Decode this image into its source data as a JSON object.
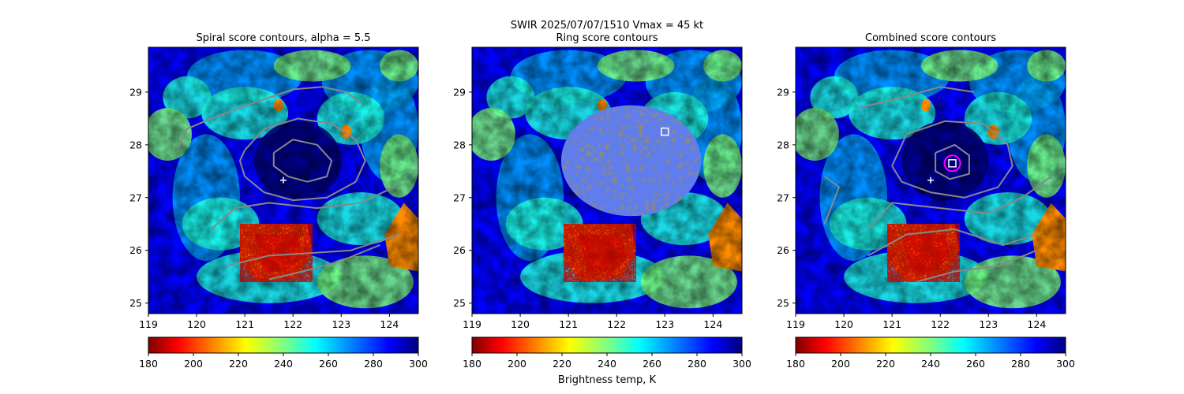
{
  "suptitle": {
    "line1": "SWIR  2025/07/07/1510    Vmax = 45 kt"
  },
  "colorbar_label": "Brightness temp, K",
  "colors": {
    "cold_deep": "#00007f",
    "cold": "#0000ff",
    "mid_cold": "#00a8ff",
    "cyan": "#1fffe0",
    "green": "#7dff7a",
    "yellow": "#ffe600",
    "orange": "#ff8c00",
    "warm": "#ff1e00",
    "warm_deep": "#800000",
    "contour": "#888888",
    "center_marker": "#ffffff",
    "ring_marker": "#ff00ff"
  },
  "chart_data": [
    {
      "type": "heatmap",
      "title": "Spiral score contours, alpha =  5.5",
      "xlim": [
        119,
        124.6
      ],
      "ylim": [
        24.8,
        29.85
      ],
      "xticks": [
        "119",
        "120",
        "121",
        "122",
        "123",
        "124"
      ],
      "yticks": [
        "25",
        "26",
        "27",
        "28",
        "29"
      ],
      "colorbar": {
        "label": "",
        "range": [
          180,
          300
        ],
        "ticks": [
          "180",
          "200",
          "220",
          "240",
          "260",
          "280",
          "300"
        ]
      },
      "markers": [
        {
          "kind": "plus",
          "lon": 121.8,
          "lat": 27.33
        }
      ],
      "contours": [
        [
          [
            119.6,
            27.9
          ],
          [
            119.8,
            28.3
          ],
          [
            120.3,
            28.5
          ],
          [
            121.2,
            28.8
          ],
          [
            122.0,
            29.05
          ],
          [
            122.6,
            29.1
          ],
          [
            123.1,
            29.0
          ],
          [
            123.4,
            28.8
          ]
        ],
        [
          [
            121.0,
            27.9
          ],
          [
            121.4,
            28.3
          ],
          [
            122.1,
            28.5
          ],
          [
            122.8,
            28.4
          ],
          [
            123.3,
            28.1
          ],
          [
            123.5,
            27.7
          ],
          [
            123.3,
            27.3
          ],
          [
            122.7,
            27.0
          ],
          [
            122.0,
            26.95
          ],
          [
            121.4,
            27.1
          ],
          [
            121.0,
            27.4
          ],
          [
            120.9,
            27.7
          ],
          [
            121.0,
            27.9
          ]
        ],
        [
          [
            121.6,
            27.85
          ],
          [
            122.0,
            28.1
          ],
          [
            122.5,
            28.0
          ],
          [
            122.8,
            27.7
          ],
          [
            122.7,
            27.4
          ],
          [
            122.3,
            27.3
          ],
          [
            121.9,
            27.4
          ],
          [
            121.6,
            27.6
          ],
          [
            121.6,
            27.85
          ]
        ],
        [
          [
            120.3,
            26.4
          ],
          [
            120.8,
            26.8
          ],
          [
            121.5,
            26.9
          ],
          [
            122.5,
            26.8
          ],
          [
            123.4,
            26.9
          ],
          [
            124.1,
            27.2
          ]
        ],
        [
          [
            120.6,
            25.7
          ],
          [
            121.5,
            25.9
          ],
          [
            122.4,
            25.95
          ],
          [
            123.2,
            26.0
          ],
          [
            124.2,
            26.3
          ]
        ],
        [
          [
            121.5,
            25.45
          ],
          [
            122.2,
            25.6
          ],
          [
            123.0,
            25.8
          ],
          [
            123.8,
            26.1
          ]
        ]
      ]
    },
    {
      "type": "heatmap",
      "title": "Ring score contours",
      "xlim": [
        119,
        124.6
      ],
      "ylim": [
        24.8,
        29.85
      ],
      "xticks": [
        "119",
        "120",
        "121",
        "122",
        "123",
        "124"
      ],
      "yticks": [
        "25",
        "26",
        "27",
        "28",
        "29"
      ],
      "colorbar": {
        "label": "Brightness temp, K",
        "range": [
          180,
          300
        ],
        "ticks": [
          "180",
          "200",
          "220",
          "240",
          "260",
          "280",
          "300"
        ]
      },
      "markers": [
        {
          "kind": "square",
          "lon": 123.0,
          "lat": 28.25
        }
      ],
      "ring_region": {
        "center_lon": 122.3,
        "center_lat": 27.7,
        "radius_lon": 1.45,
        "radius_lat": 1.05
      },
      "contours": []
    },
    {
      "type": "heatmap",
      "title": "Combined score contours",
      "xlim": [
        119,
        124.6
      ],
      "ylim": [
        24.8,
        29.85
      ],
      "xticks": [
        "119",
        "120",
        "121",
        "122",
        "123",
        "124"
      ],
      "yticks": [
        "25",
        "26",
        "27",
        "28",
        "29"
      ],
      "colorbar": {
        "label": "",
        "range": [
          180,
          300
        ],
        "ticks": [
          "180",
          "200",
          "220",
          "240",
          "260",
          "280",
          "300"
        ]
      },
      "markers": [
        {
          "kind": "plus",
          "lon": 121.8,
          "lat": 27.33
        },
        {
          "kind": "ring",
          "lon": 122.25,
          "lat": 27.65
        },
        {
          "kind": "square",
          "lon": 122.25,
          "lat": 27.65
        }
      ],
      "contours": [
        [
          [
            120.3,
            28.7
          ],
          [
            121.0,
            28.85
          ],
          [
            122.0,
            29.1
          ],
          [
            122.7,
            29.0
          ]
        ],
        [
          [
            121.0,
            27.6
          ],
          [
            121.3,
            28.2
          ],
          [
            122.1,
            28.45
          ],
          [
            122.9,
            28.4
          ],
          [
            123.4,
            28.0
          ],
          [
            123.5,
            27.6
          ],
          [
            123.2,
            27.2
          ],
          [
            122.5,
            27.0
          ],
          [
            121.8,
            27.1
          ],
          [
            121.2,
            27.3
          ],
          [
            121.0,
            27.6
          ]
        ],
        [
          [
            121.9,
            27.85
          ],
          [
            122.3,
            28.0
          ],
          [
            122.6,
            27.8
          ],
          [
            122.6,
            27.45
          ],
          [
            122.2,
            27.35
          ],
          [
            121.9,
            27.5
          ],
          [
            121.9,
            27.85
          ]
        ],
        [
          [
            119.6,
            27.4
          ],
          [
            119.9,
            27.2
          ],
          [
            119.6,
            26.5
          ]
        ],
        [
          [
            120.5,
            26.4
          ],
          [
            121.0,
            26.9
          ],
          [
            122.0,
            26.8
          ],
          [
            123.0,
            26.7
          ],
          [
            123.7,
            27.0
          ],
          [
            124.3,
            27.4
          ]
        ],
        [
          [
            120.5,
            25.9
          ],
          [
            121.3,
            26.3
          ],
          [
            122.3,
            26.4
          ],
          [
            123.3,
            26.1
          ],
          [
            124.0,
            26.3
          ]
        ],
        [
          [
            121.5,
            25.4
          ],
          [
            122.3,
            25.6
          ],
          [
            123.2,
            25.7
          ],
          [
            124.0,
            26.0
          ]
        ]
      ]
    }
  ]
}
